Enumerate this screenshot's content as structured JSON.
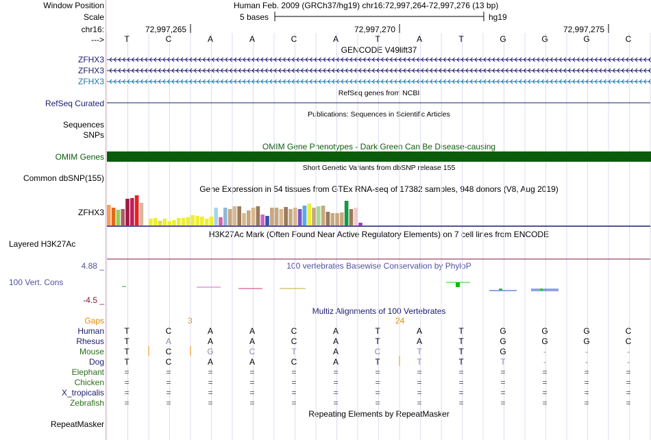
{
  "labels": {
    "window_position": "Window Position",
    "scale": "Scale",
    "chrom": "chr16:",
    "strand": "--->",
    "zfhx3_1": "ZFHX3",
    "zfhx3_2": "ZFHX3",
    "zfhx3_3": "ZFHX3",
    "refseq": "RefSeq Curated",
    "sequences": "Sequences",
    "snps": "SNPs",
    "omim": "OMIM Genes",
    "dbsnp": "Common dbSNP(155)",
    "gtex_gene": "ZFHX3",
    "h3k27ac": "Layered H3K27Ac",
    "cons_max": "4.88 _",
    "cons_label": "100 Vert. Cons",
    "cons_min": "-4.5 _",
    "repeatmasker": "RepeatMasker"
  },
  "header": {
    "position": "Human Feb. 2009 (GRCh37/hg19)   chr16:72,997,264-72,997,276 (13 bp)",
    "scale_text": "5 bases",
    "assembly": "hg19",
    "coords": [
      "72,997,265",
      "72,997,270",
      "72,997,275"
    ]
  },
  "bases": [
    "T",
    "C",
    "A",
    "A",
    "C",
    "A",
    "T",
    "A",
    "T",
    "G",
    "G",
    "G",
    "C"
  ],
  "titles": {
    "gencode": "GENCODE V49lift37",
    "refseq": "RefSeq genes from NCBI",
    "pubs": "Publications: Sequences in Scientific Articles",
    "omim": "OMIM Gene Phenotypes - Dark Green Can Be Disease-causing",
    "dbsnp": "Short Genetic Variants from dbSNP release 155",
    "gtex": "Gene Expression in 54 tissues from GTEx RNA-seq of 17382 samples, 948 donors (V8, Aug 2019)",
    "h3k27ac": "H3K27Ac Mark (Often Found Near Active Regulatory Elements) on 7 cell lines from ENCODE",
    "phylop": "100 vertebrates Basewise Conservation by PhyloP",
    "multiz": "Multiz Alignments of 100 Vertebrates",
    "repeat": "Repeating Elements by RepeatMasker"
  },
  "multiz": {
    "gaps_label": "Gaps",
    "gap_counts": [
      "3",
      "24"
    ],
    "species": [
      {
        "name": "Human",
        "color": "#1a1a6e",
        "seq": [
          "T",
          "C",
          "A",
          "A",
          "C",
          "A",
          "T",
          "A",
          "T",
          "G",
          "G",
          "G",
          "C"
        ],
        "gray": []
      },
      {
        "name": "Rhesus",
        "color": "#1a1a6e",
        "seq": [
          "T",
          "A",
          "A",
          "A",
          "C",
          "A",
          "T",
          "A",
          "T",
          "G",
          "G",
          "G",
          "C"
        ],
        "gray": [
          1
        ]
      },
      {
        "name": "Mouse",
        "color": "#2a6e1a",
        "seq": [
          "T",
          "C",
          "G",
          "C",
          "T",
          "A",
          "C",
          "T",
          "T",
          "G",
          "-",
          "-",
          "-"
        ],
        "gray": [
          2,
          3,
          4,
          6,
          7,
          10,
          11,
          12
        ]
      },
      {
        "name": "Dog",
        "color": "#1a1a6e",
        "seq": [
          "T",
          "C",
          "A",
          "A",
          "C",
          "A",
          "T",
          "T",
          "T",
          "T",
          "-",
          "-",
          "-"
        ],
        "gray": [
          7,
          9,
          10,
          11,
          12
        ]
      },
      {
        "name": "Elephant",
        "color": "#2a6e1a",
        "seq": [
          "=",
          "=",
          "=",
          "=",
          "=",
          "=",
          "=",
          "=",
          "=",
          "=",
          "=",
          "=",
          "="
        ],
        "gray": []
      },
      {
        "name": "Chicken",
        "color": "#2a6e1a",
        "seq": [
          "=",
          "=",
          "=",
          "=",
          "=",
          "=",
          "=",
          "=",
          "=",
          "=",
          "=",
          "=",
          "="
        ],
        "gray": []
      },
      {
        "name": "X_tropicalis",
        "color": "#1a1a6e",
        "seq": [
          "=",
          "=",
          "=",
          "=",
          "=",
          "=",
          "=",
          "=",
          "=",
          "=",
          "=",
          "=",
          "="
        ],
        "gray": []
      },
      {
        "name": "Zebrafish",
        "color": "#2a6e1a",
        "seq": [
          "=",
          "=",
          "=",
          "=",
          "=",
          "=",
          "=",
          "=",
          "=",
          "=",
          "=",
          "=",
          "="
        ],
        "gray": []
      }
    ]
  },
  "gtex_colors": [
    "#f2a15c",
    "#e8661b",
    "#8fd14f",
    "#b05a6a",
    "#9e1a42",
    "#c21f5a",
    "#e8201e",
    "#d8b8a0",
    "#ffffff",
    "#eeee33",
    "#eeee33",
    "#dddd44",
    "#eeee33",
    "#eeee33",
    "#eeee33",
    "#eeee33",
    "#eeee33",
    "#eeee33",
    "#eeee33",
    "#eeee33",
    "#eeee33",
    "#eeee33",
    "#eeee33",
    "#aad4e6",
    "#cc66aa",
    "#8fb8d9",
    "#c8a880",
    "#d8b890",
    "#9a7a5a",
    "#d8b890",
    "#c8a880",
    "#d8b890",
    "#9a7a5a",
    "#cc66cc",
    "#3355aa",
    "#c8a880",
    "#c8a880",
    "#d8b890",
    "#9a7a5a",
    "#c8a880",
    "#d8b890",
    "#7a55cc",
    "#55aaee",
    "#eeee33",
    "#c8a880",
    "#a8d890",
    "#c8a880",
    "#9a7a5a",
    "#c8a880",
    "#c8a880",
    "#c8a880",
    "#119944",
    "#9a7a5a",
    "#eecccc",
    "#aa33cc"
  ],
  "colors": {
    "gene_dark": "#191970",
    "gene_teal": "#1a77aa",
    "omim": "#0a5c0a",
    "h3k27ac_line": "#7a1a3a",
    "phylop_title": "#5050a0",
    "gaps": "#e08a00",
    "guide": "#d0d0f0"
  }
}
